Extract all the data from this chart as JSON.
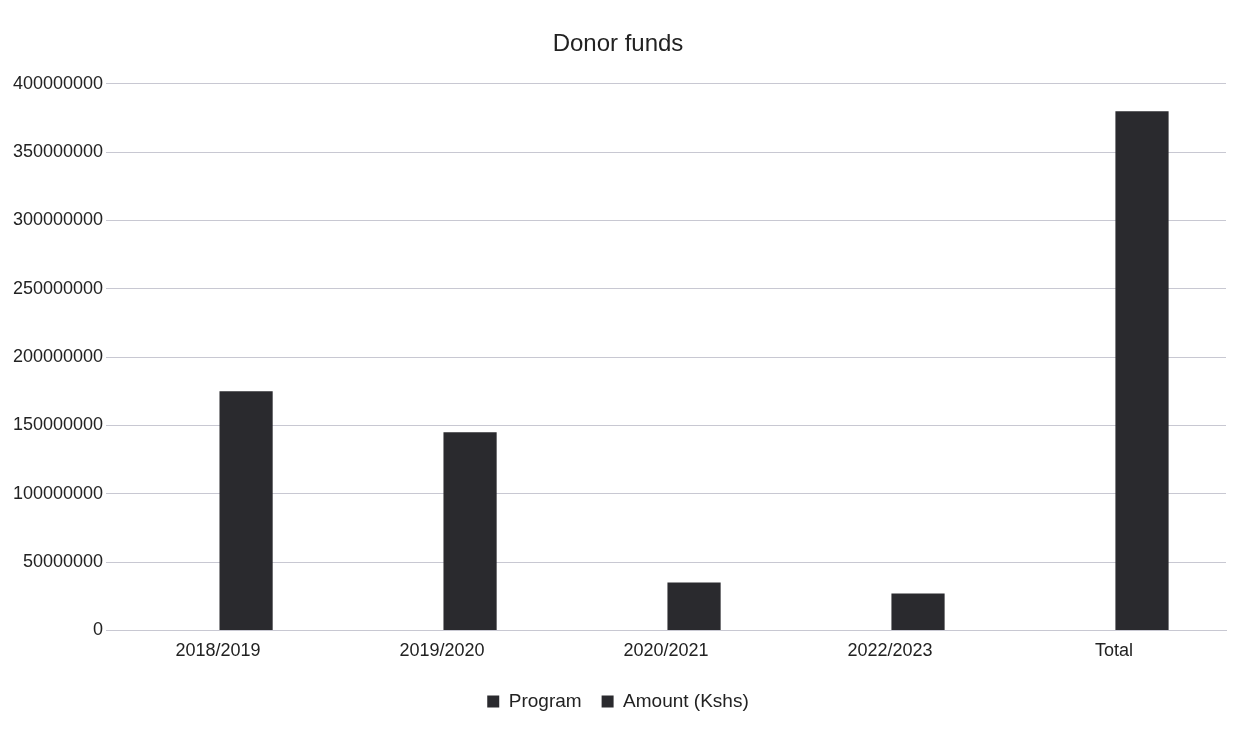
{
  "chart_data": {
    "type": "bar",
    "title": "Donor funds",
    "categories": [
      "2018/2019",
      "2019/2020",
      "2020/2021",
      "2022/2023",
      "Total"
    ],
    "series": [
      {
        "name": "Program",
        "color": "#2a2a2e",
        "values": [
          null,
          null,
          null,
          null,
          null
        ]
      },
      {
        "name": "Amount (Kshs)",
        "color": "#2a2a2e",
        "values": [
          175000000,
          145000000,
          35000000,
          27000000,
          380000000
        ]
      }
    ],
    "ylim": [
      0,
      400000000
    ],
    "yticks": [
      0,
      50000000,
      100000000,
      150000000,
      200000000,
      250000000,
      300000000,
      350000000,
      400000000
    ],
    "grid": "y",
    "legend": "bottom"
  }
}
